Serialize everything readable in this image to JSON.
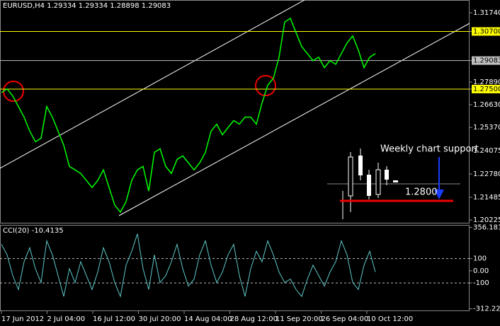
{
  "title": "EURUSD,H4  1.29334 1.29334 1.28898 1.29083",
  "time_axis": [
    "17 Jun 2012",
    "2 Jul 04:00",
    "16 Jul 12:00",
    "30 Jul 20:00",
    "14 Aug 04:00",
    "28 Aug 12:00",
    "11 Sep 20:00",
    "26 Sep 04:00",
    "10 Oct 12:00"
  ],
  "annotations": [
    "Weekly chart support",
    "1.2800"
  ],
  "chart_data": [
    {
      "type": "line",
      "color": "#00ff00",
      "values": [
        1.2731,
        1.2751,
        1.2712,
        1.2653,
        1.2594,
        1.2516,
        1.2457,
        1.2477,
        1.2653,
        1.2594,
        1.2516,
        1.2438,
        1.232,
        1.2301,
        1.2281,
        1.2242,
        1.2203,
        1.2242,
        1.2301,
        1.2203,
        1.2105,
        1.2066,
        1.2124,
        1.2242,
        1.2301,
        1.232,
        1.2183,
        1.2398,
        1.2418,
        1.232,
        1.2281,
        1.2359,
        1.2379,
        1.234,
        1.2301,
        1.234,
        1.2398,
        1.2516,
        1.2555,
        1.2496,
        1.2536,
        1.2575,
        1.2555,
        1.2594,
        1.2594,
        1.2555,
        1.2673,
        1.2771,
        1.281,
        1.2927,
        1.3123,
        1.3143,
        1.3064,
        1.2986,
        1.2947,
        1.2908,
        1.2927,
        1.2869,
        1.2908,
        1.2888,
        1.2947,
        1.3006,
        1.3045,
        1.2966,
        1.2869,
        1.2927,
        1.2947
      ],
      "ylim": [
        1.2007,
        1.3241
      ],
      "yticks": [
        {
          "value": 1.3174,
          "label": "1.31740"
        },
        {
          "value": 1.307,
          "label": "1.30700",
          "line_color": "#ffff00"
        },
        {
          "value": 1.29083,
          "label": "1.29083",
          "line_color": "#c0c0c0"
        },
        {
          "value": 1.2789,
          "label": "1.27890"
        },
        {
          "value": 1.275,
          "label": "1.27500",
          "line_color": "#ffff00"
        },
        {
          "value": 1.2663,
          "label": "1.26630"
        },
        {
          "value": 1.2537,
          "label": "1.25370"
        },
        {
          "value": 1.24075,
          "label": "1.24075"
        },
        {
          "value": 1.2278,
          "label": "1.22780"
        },
        {
          "value": 1.21485,
          "label": "1.21485"
        },
        {
          "value": 1.20225,
          "label": "1.20225"
        }
      ]
    },
    {
      "type": "line",
      "title": "CCI(20) -10.4135",
      "color": "#5fc8c8",
      "values": [
        217,
        131,
        -40,
        -154,
        74,
        189,
        17,
        -97,
        246,
        131,
        -40,
        -211,
        17,
        -97,
        74,
        -40,
        -154,
        -11,
        189,
        74,
        -97,
        -211,
        46,
        160,
        303,
        17,
        -154,
        131,
        -97,
        -40,
        74,
        217,
        17,
        -126,
        -69,
        131,
        246,
        46,
        -97,
        -11,
        131,
        217,
        -40,
        -211,
        17,
        160,
        74,
        246,
        131,
        -11,
        -97,
        -69,
        -154,
        -211,
        -69,
        46,
        -40,
        -126,
        -11,
        74,
        246,
        131,
        -97,
        -154,
        46,
        160,
        -10
      ],
      "ylim": [
        -326,
        371
      ],
      "yticks": [
        {
          "value": 356.181,
          "label": "356.181"
        },
        {
          "value": 100,
          "label": "100",
          "dotted": true
        },
        {
          "value": 0,
          "label": "0.00"
        },
        {
          "value": -100,
          "label": "-100",
          "dotted": true
        },
        {
          "value": -312.221,
          "label": "-312.221"
        }
      ]
    }
  ]
}
